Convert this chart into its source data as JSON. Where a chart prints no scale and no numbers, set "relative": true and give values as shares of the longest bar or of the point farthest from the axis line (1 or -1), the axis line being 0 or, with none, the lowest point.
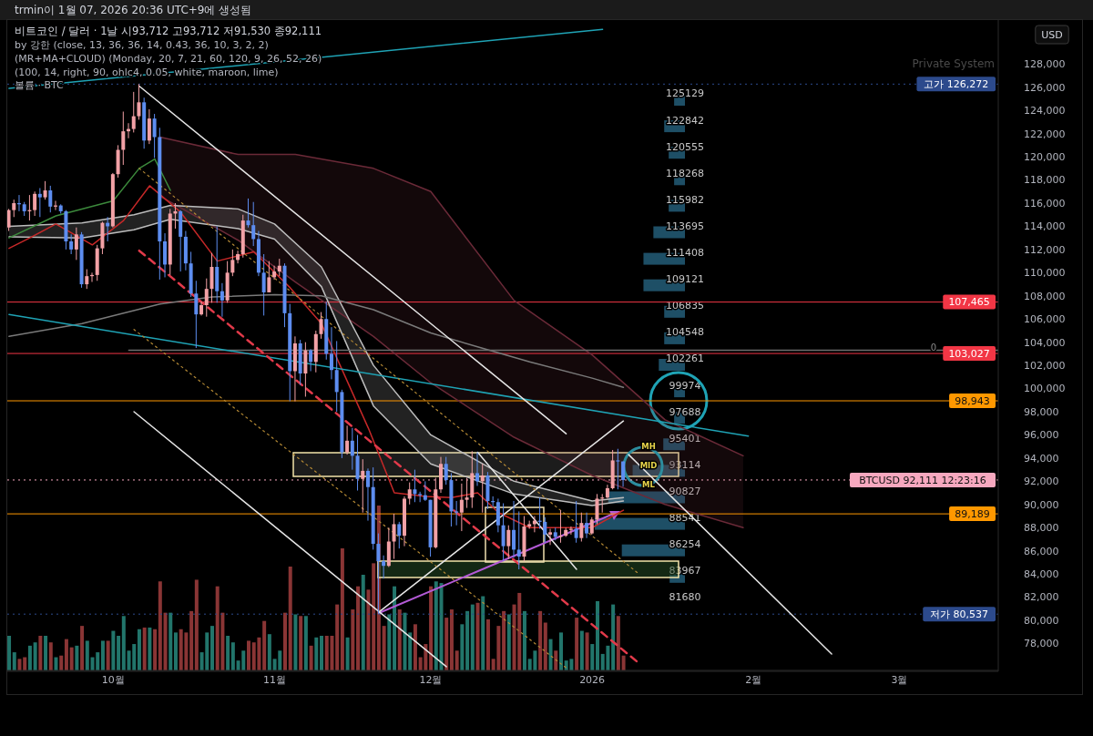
{
  "chart_data": [
    {
      "type": "candlestick",
      "title": "비트코인 / 달러 · 1날 시93,712 고93,712 저91,530 종92,111",
      "annotations": [
        "trmin이 1월 07, 2026 20:36 UTC+9에 생성됨",
        "by 강한 (close, 13, 36, 36, 14, 0.43, 36, 10, 3, 2, 2)",
        "(MR+MA+CLOUD) (Monday, 20, 7, 21, 60, 120, 9, 26, 52, 26)",
        "(100, 14, right, 90, ohlc4, 0.05, white, maroon, lime)",
        "볼륨 · BTC",
        "Private System",
        "USD",
        "0",
        "MH",
        "MID",
        "ML"
      ],
      "x": [
        "2025-09-11",
        "2025-09-12",
        "2025-09-13",
        "2025-09-14",
        "2025-09-15",
        "2025-09-16",
        "2025-09-17",
        "2025-09-18",
        "2025-09-19",
        "2025-09-20",
        "2025-09-21",
        "2025-09-22",
        "2025-09-23",
        "2025-09-24",
        "2025-09-25",
        "2025-09-26",
        "2025-09-27",
        "2025-09-28",
        "2025-09-29",
        "2025-09-30",
        "2025-10-01",
        "2025-10-02",
        "2025-10-03",
        "2025-10-04",
        "2025-10-05",
        "2025-10-06",
        "2025-10-07",
        "2025-10-08",
        "2025-10-09",
        "2025-10-10",
        "2025-10-11",
        "2025-10-12",
        "2025-10-13",
        "2025-10-14",
        "2025-10-15",
        "2025-10-16",
        "2025-10-17",
        "2025-10-18",
        "2025-10-19",
        "2025-10-20",
        "2025-10-21",
        "2025-10-22",
        "2025-10-23",
        "2025-10-24",
        "2025-10-25",
        "2025-10-26",
        "2025-10-27",
        "2025-10-28",
        "2025-10-29",
        "2025-10-30",
        "2025-10-31",
        "2025-11-01",
        "2025-11-02",
        "2025-11-03",
        "2025-11-04",
        "2025-11-05",
        "2025-11-06",
        "2025-11-07",
        "2025-11-08",
        "2025-11-09",
        "2025-11-10",
        "2025-11-11",
        "2025-11-12",
        "2025-11-13",
        "2025-11-14",
        "2025-11-15",
        "2025-11-16",
        "2025-11-17",
        "2025-11-18",
        "2025-11-19",
        "2025-11-20",
        "2025-11-21",
        "2025-11-22",
        "2025-11-23",
        "2025-11-24",
        "2025-11-25",
        "2025-11-26",
        "2025-11-27",
        "2025-11-28",
        "2025-11-29",
        "2025-11-30",
        "2025-12-01",
        "2025-12-02",
        "2025-12-03",
        "2025-12-04",
        "2025-12-05",
        "2025-12-06",
        "2025-12-07",
        "2025-12-08",
        "2025-12-09",
        "2025-12-10",
        "2025-12-11",
        "2025-12-12",
        "2025-12-13",
        "2025-12-14",
        "2025-12-15",
        "2025-12-16",
        "2025-12-17",
        "2025-12-18",
        "2025-12-19",
        "2025-12-20",
        "2025-12-21",
        "2025-12-22",
        "2025-12-23",
        "2025-12-24",
        "2025-12-25",
        "2025-12-26",
        "2025-12-27",
        "2025-12-28",
        "2025-12-29",
        "2025-12-30",
        "2025-12-31",
        "2026-01-01",
        "2026-01-02",
        "2026-01-03",
        "2026-01-04",
        "2026-01-05",
        "2026-01-06",
        "2026-01-07"
      ],
      "ohlc": [
        [
          113900,
          115500,
          113600,
          115400
        ],
        [
          115400,
          116300,
          114800,
          116000
        ],
        [
          116000,
          116700,
          115300,
          115900
        ],
        [
          115900,
          116100,
          114900,
          115300
        ],
        [
          115300,
          116700,
          114500,
          115400
        ],
        [
          115400,
          117000,
          114900,
          116800
        ],
        [
          116800,
          117300,
          114800,
          116500
        ],
        [
          116500,
          117900,
          116300,
          117100
        ],
        [
          117100,
          117500,
          115200,
          115700
        ],
        [
          115700,
          116200,
          115400,
          115800
        ],
        [
          115800,
          115900,
          115100,
          115300
        ],
        [
          115300,
          115400,
          112000,
          112700
        ],
        [
          112700,
          113300,
          111600,
          112000
        ],
        [
          112000,
          113900,
          111100,
          113300
        ],
        [
          113300,
          113500,
          108700,
          109000
        ],
        [
          109000,
          110300,
          108600,
          109700
        ],
        [
          109700,
          110000,
          109200,
          109800
        ],
        [
          109800,
          112400,
          109300,
          112100
        ],
        [
          112100,
          114400,
          111600,
          114300
        ],
        [
          114300,
          114800,
          112700,
          114000
        ],
        [
          114000,
          118600,
          113900,
          118500
        ],
        [
          118500,
          121000,
          118200,
          120600
        ],
        [
          120600,
          123900,
          119300,
          122200
        ],
        [
          122200,
          122900,
          121600,
          122400
        ],
        [
          122400,
          125600,
          122100,
          123500
        ],
        [
          123500,
          126272,
          123200,
          124700
        ],
        [
          124700,
          125100,
          120700,
          121400
        ],
        [
          121400,
          124100,
          121100,
          123300
        ],
        [
          123300,
          123700,
          119900,
          121700
        ],
        [
          121700,
          122500,
          109400,
          112700
        ],
        [
          112700,
          113400,
          109600,
          110700
        ],
        [
          110700,
          115500,
          109800,
          115100
        ],
        [
          115100,
          116000,
          113800,
          115300
        ],
        [
          115300,
          115400,
          110100,
          113100
        ],
        [
          113100,
          113600,
          110200,
          110800
        ],
        [
          110800,
          111800,
          107900,
          108200
        ],
        [
          108200,
          109300,
          103500,
          106400
        ],
        [
          106400,
          107500,
          106300,
          107200
        ],
        [
          107200,
          109500,
          106200,
          108600
        ],
        [
          108600,
          111700,
          107400,
          110500
        ],
        [
          110500,
          114000,
          107400,
          108400
        ],
        [
          108400,
          109100,
          106200,
          107600
        ],
        [
          107600,
          111000,
          107400,
          110000
        ],
        [
          110000,
          112000,
          109700,
          111100
        ],
        [
          111100,
          111900,
          110800,
          111600
        ],
        [
          111600,
          115000,
          111300,
          114500
        ],
        [
          114500,
          116400,
          113900,
          114100
        ],
        [
          114100,
          116100,
          112300,
          112900
        ],
        [
          112900,
          113600,
          109700,
          110000
        ],
        [
          110000,
          111600,
          106300,
          108300
        ],
        [
          108300,
          111000,
          108300,
          109600
        ],
        [
          109600,
          110600,
          109400,
          110100
        ],
        [
          110100,
          111200,
          109700,
          110600
        ],
        [
          110600,
          110800,
          105300,
          106500
        ],
        [
          106500,
          107300,
          98900,
          101500
        ],
        [
          101500,
          104500,
          98900,
          103900
        ],
        [
          103900,
          104200,
          100300,
          101300
        ],
        [
          101300,
          104000,
          99300,
          103300
        ],
        [
          103300,
          103400,
          101500,
          102300
        ],
        [
          102300,
          105000,
          101400,
          104700
        ],
        [
          104700,
          106600,
          104300,
          106000
        ],
        [
          106000,
          107500,
          102500,
          103000
        ],
        [
          103000,
          105300,
          100800,
          101600
        ],
        [
          101600,
          104100,
          98000,
          99700
        ],
        [
          99700,
          99900,
          94000,
          94500
        ],
        [
          94500,
          96800,
          94300,
          95500
        ],
        [
          95500,
          96600,
          93000,
          94200
        ],
        [
          94200,
          96000,
          91200,
          92200
        ],
        [
          92200,
          93900,
          89300,
          92900
        ],
        [
          92900,
          93100,
          88600,
          91500
        ],
        [
          91500,
          93200,
          86100,
          86600
        ],
        [
          86600,
          87500,
          80537,
          85100
        ],
        [
          85100,
          85600,
          83600,
          84700
        ],
        [
          84700,
          88000,
          84600,
          86800
        ],
        [
          86800,
          89200,
          85300,
          88300
        ],
        [
          88300,
          88500,
          86200,
          87300
        ],
        [
          87300,
          90700,
          86400,
          90500
        ],
        [
          90500,
          91900,
          90000,
          91300
        ],
        [
          91300,
          93000,
          90200,
          90900
        ],
        [
          90900,
          91100,
          90200,
          90800
        ],
        [
          90800,
          92000,
          90300,
          90400
        ],
        [
          90400,
          90400,
          85500,
          86300
        ],
        [
          86300,
          92300,
          86200,
          91300
        ],
        [
          91300,
          94100,
          91000,
          93500
        ],
        [
          93500,
          94100,
          91700,
          92100
        ],
        [
          92100,
          92700,
          88100,
          89400
        ],
        [
          89400,
          90300,
          88200,
          89300
        ],
        [
          89300,
          91800,
          87700,
          90400
        ],
        [
          90400,
          92300,
          89700,
          90600
        ],
        [
          90600,
          94600,
          89700,
          92700
        ],
        [
          92700,
          94500,
          91600,
          92000
        ],
        [
          92000,
          93500,
          89300,
          92500
        ],
        [
          92500,
          92800,
          89600,
          90300
        ],
        [
          90300,
          90700,
          89800,
          90200
        ],
        [
          90200,
          90500,
          87600,
          88200
        ],
        [
          88200,
          90100,
          85100,
          86400
        ],
        [
          86400,
          88200,
          85300,
          87800
        ],
        [
          87800,
          90300,
          85400,
          86100
        ],
        [
          86100,
          89400,
          84400,
          85500
        ],
        [
          85500,
          89000,
          85100,
          88100
        ],
        [
          88100,
          88600,
          87900,
          88300
        ],
        [
          88300,
          89000,
          87600,
          88600
        ],
        [
          88600,
          90600,
          87900,
          88500
        ],
        [
          88500,
          88900,
          86700,
          87400
        ],
        [
          87400,
          87900,
          86500,
          87600
        ],
        [
          87600,
          88000,
          86900,
          87200
        ],
        [
          87200,
          89500,
          86700,
          87300
        ],
        [
          87300,
          88000,
          87200,
          87800
        ],
        [
          87800,
          88100,
          87400,
          87900
        ],
        [
          87900,
          90300,
          86700,
          87100
        ],
        [
          87100,
          89300,
          86800,
          88400
        ],
        [
          88400,
          89300,
          87100,
          87500
        ],
        [
          87500,
          88900,
          87400,
          88700
        ],
        [
          88700,
          90900,
          88300,
          90500
        ],
        [
          90500,
          90900,
          89300,
          90600
        ],
        [
          90600,
          91700,
          90500,
          91400
        ],
        [
          91400,
          94700,
          91300,
          93800
        ],
        [
          93800,
          94800,
          91300,
          93712
        ],
        [
          93712,
          93712,
          91530,
          92111
        ]
      ],
      "colors": [
        "#f2a1a6",
        "#f2a1a6",
        "#5d8df0",
        "#5d8df0",
        "#f2a1a6",
        "#f2a1a6",
        "#5d8df0",
        "#f2a1a6",
        "#5d8df0",
        "#f2a1a6",
        "#5d8df0",
        "#5d8df0",
        "#5d8df0",
        "#f2a1a6",
        "#5d8df0",
        "#f2a1a6",
        "#f2a1a6",
        "#f2a1a6",
        "#f2a1a6",
        "#5d8df0",
        "#f2a1a6",
        "#f2a1a6",
        "#f2a1a6",
        "#f2a1a6",
        "#f2a1a6",
        "#f2a1a6",
        "#5d8df0",
        "#f2a1a6",
        "#5d8df0",
        "#5d8df0",
        "#5d8df0",
        "#f2a1a6",
        "#f2a1a6",
        "#5d8df0",
        "#5d8df0",
        "#5d8df0",
        "#5d8df0",
        "#f2a1a6",
        "#f2a1a6",
        "#f2a1a6",
        "#5d8df0",
        "#5d8df0",
        "#f2a1a6",
        "#f2a1a6",
        "#f2a1a6",
        "#f2a1a6",
        "#5d8df0",
        "#5d8df0",
        "#5d8df0",
        "#5d8df0",
        "#f2a1a6",
        "#f2a1a6",
        "#f2a1a6",
        "#5d8df0",
        "#5d8df0",
        "#f2a1a6",
        "#5d8df0",
        "#f2a1a6",
        "#5d8df0",
        "#f2a1a6",
        "#f2a1a6",
        "#5d8df0",
        "#5d8df0",
        "#5d8df0",
        "#5d8df0",
        "#f2a1a6",
        "#5d8df0",
        "#5d8df0",
        "#f2a1a6",
        "#5d8df0",
        "#5d8df0",
        "#5d8df0",
        "#5d8df0",
        "#f2a1a6",
        "#f2a1a6",
        "#5d8df0",
        "#f2a1a6",
        "#f2a1a6",
        "#5d8df0",
        "#5d8df0",
        "#5d8df0",
        "#5d8df0",
        "#f2a1a6",
        "#f2a1a6",
        "#5d8df0",
        "#5d8df0",
        "#5d8df0",
        "#f2a1a6",
        "#f2a1a6",
        "#f2a1a6",
        "#5d8df0",
        "#f2a1a6",
        "#5d8df0",
        "#5d8df0",
        "#5d8df0",
        "#5d8df0",
        "#f2a1a6",
        "#5d8df0",
        "#5d8df0",
        "#f2a1a6",
        "#f2a1a6",
        "#f2a1a6",
        "#5d8df0",
        "#5d8df0",
        "#f2a1a6",
        "#5d8df0",
        "#f2a1a6",
        "#f2a1a6",
        "#f2a1a6",
        "#5d8df0",
        "#f2a1a6",
        "#5d8df0",
        "#f2a1a6",
        "#f2a1a6",
        "#f2a1a6",
        "#f2a1a6",
        "#f2a1a6",
        "#5d8df0",
        "#5d8df0"
      ],
      "series": [
        {
          "type": "line",
          "color": "#6b2a38",
          "x": [
            "2025-10-10",
            "2025-10-25",
            "2025-11-05",
            "2025-11-20",
            "2025-12-01",
            "2025-12-17",
            "2026-01-01",
            "2026-01-15",
            "2026-01-30"
          ],
          "values": [
            121700,
            120200,
            120200,
            119000,
            117000,
            107600,
            102900,
            97300,
            94200
          ],
          "lower": [
            116600,
            112800,
            109200,
            104500,
            100500,
            95800,
            92500,
            90000,
            88000
          ],
          "upper": [
            121700,
            120200,
            120200,
            119000,
            117000,
            107600,
            102900,
            97300,
            94200
          ]
        },
        {
          "type": "line",
          "color": "#6b2a38",
          "x": [
            "2025-10-10",
            "2025-10-25",
            "2025-11-05",
            "2025-11-20",
            "2025-12-01",
            "2025-12-17",
            "2026-01-01",
            "2026-01-15",
            "2026-01-30"
          ],
          "values": [
            116600,
            112800,
            109200,
            104500,
            100500,
            95800,
            92500,
            90000,
            88000
          ]
        },
        {
          "type": "line",
          "color": "#bdbdbd",
          "x": [
            "2025-09-11",
            "2025-09-25",
            "2025-10-05",
            "2025-10-12",
            "2025-10-25",
            "2025-11-01",
            "2025-11-10",
            "2025-11-20",
            "2025-12-01",
            "2025-12-17",
            "2026-01-01",
            "2026-01-07"
          ],
          "values": [
            114000,
            114300,
            115000,
            115800,
            115500,
            114200,
            110500,
            102000,
            96000,
            92000,
            90300,
            90600
          ],
          "lower": [
            113100,
            113000,
            113700,
            114600,
            113800,
            112900,
            108800,
            98500,
            93500,
            90900,
            89900,
            90300
          ],
          "upper": [
            114000,
            114300,
            115000,
            115800,
            115500,
            114200,
            110500,
            102000,
            96000,
            92000,
            90300,
            90600
          ]
        },
        {
          "type": "line",
          "color": "#bdbdbd",
          "x": [
            "2025-09-11",
            "2025-09-25",
            "2025-10-05",
            "2025-10-12",
            "2025-10-25",
            "2025-11-01",
            "2025-11-10",
            "2025-11-20",
            "2025-12-01",
            "2025-12-17",
            "2026-01-01",
            "2026-01-07"
          ],
          "values": [
            113100,
            113000,
            113700,
            114600,
            113800,
            112900,
            108800,
            98500,
            93500,
            90900,
            89900,
            90300
          ]
        },
        {
          "type": "line",
          "color": "#7a7a7a",
          "x": [
            "2025-09-11",
            "2025-09-25",
            "2025-10-10",
            "2025-10-20",
            "2025-11-01",
            "2025-11-10",
            "2025-11-20",
            "2025-12-01",
            "2025-12-10",
            "2025-12-20",
            "2026-01-01",
            "2026-01-07"
          ],
          "values": [
            104500,
            105600,
            107300,
            107900,
            108100,
            108000,
            106800,
            104800,
            103600,
            102300,
            100900,
            100100
          ]
        },
        {
          "type": "line",
          "color": "#c62828",
          "x": [
            "2025-09-11",
            "2025-09-15",
            "2025-09-20",
            "2025-09-27",
            "2025-10-03",
            "2025-10-08",
            "2025-10-14",
            "2025-10-21",
            "2025-10-28",
            "2025-11-04",
            "2025-11-10",
            "2025-11-19",
            "2025-11-24",
            "2025-11-30",
            "2025-12-05",
            "2025-12-10",
            "2025-12-14",
            "2025-12-20",
            "2026-01-01",
            "2026-01-07"
          ],
          "values": [
            112100,
            113000,
            114200,
            112400,
            114500,
            117500,
            115200,
            111000,
            111800,
            108700,
            105600,
            96600,
            91000,
            90700,
            90600,
            91000,
            89300,
            88000,
            88000,
            89500
          ]
        },
        {
          "type": "line",
          "color": "#3c8a3c",
          "x": [
            "2025-09-11",
            "2025-09-20",
            "2025-10-01",
            "2025-10-06",
            "2025-10-09",
            "2025-10-12"
          ],
          "values": [
            113000,
            114900,
            116200,
            119000,
            119800,
            117100
          ]
        },
        {
          "type": "line",
          "color": "#6e6e6e",
          "x": [
            "2025-10-04",
            "2026-03-20"
          ],
          "values": [
            103300,
            103300
          ]
        },
        {
          "type": "line",
          "color": "#1fa3b5",
          "x": [
            "2025-09-11",
            "2026-01-03"
          ],
          "values": [
            125900,
            131000
          ]
        },
        {
          "type": "line",
          "color": "#1fa3b5",
          "x": [
            "2025-09-11",
            "2026-01-31"
          ],
          "values": [
            106400,
            95900
          ]
        },
        {
          "type": "line",
          "color": "#e6e6e6",
          "x": [
            "2025-10-06",
            "2025-12-27"
          ],
          "values": [
            126100,
            96100
          ]
        },
        {
          "type": "line",
          "color": "#e6e6e6",
          "x": [
            "2025-10-05",
            "2025-12-04"
          ],
          "values": [
            98000,
            76000
          ]
        },
        {
          "type": "line",
          "color": "#e6e6e6",
          "x": [
            "2025-11-21",
            "2026-01-07"
          ],
          "values": [
            80700,
            97200
          ]
        },
        {
          "type": "line",
          "color": "#e6e6e6",
          "x": [
            "2026-01-08",
            "2026-02-16"
          ],
          "values": [
            94300,
            77100
          ]
        },
        {
          "type": "line",
          "color": "#e6e6e6",
          "x": [
            "2025-12-10",
            "2025-12-29"
          ],
          "values": [
            94500,
            84400
          ]
        },
        {
          "type": "line",
          "color": "#e23a4a",
          "line_style": "dashed",
          "x": [
            "2025-10-06",
            "2026-01-10"
          ],
          "values": [
            111900,
            76300
          ]
        },
        {
          "type": "line",
          "color": "#b58a35",
          "line_style": "dotted",
          "x": [
            "2025-10-06",
            "2026-01-10"
          ],
          "values": [
            119000,
            84000
          ]
        },
        {
          "type": "line",
          "color": "#b58a35",
          "line_style": "dotted",
          "x": [
            "2025-10-05",
            "2025-12-27"
          ],
          "values": [
            105100,
            75900
          ]
        }
      ],
      "ref_lines": [
        {
          "axis": "y",
          "value": 126272,
          "label": "고가 126,272",
          "color": "#2c4a8c",
          "line_style": "dotted"
        },
        {
          "axis": "y",
          "value": 107465,
          "label": "107,465",
          "color": "#f23645"
        },
        {
          "axis": "y",
          "value": 103027,
          "label": "103,027",
          "color": "#f23645"
        },
        {
          "axis": "y",
          "value": 98943,
          "label": "98,943",
          "color": "#ff9800"
        },
        {
          "axis": "y",
          "value": 92111,
          "label": "BTCUSD 92,111 12:23:16",
          "color": "#f7a8bf",
          "line_style": "dotted"
        },
        {
          "axis": "y",
          "value": 89189,
          "label": "89,189",
          "color": "#ff9800"
        },
        {
          "axis": "y",
          "value": 80537,
          "label": "저가 80,537",
          "color": "#2c4a8c",
          "line_style": "dotted"
        }
      ],
      "xlim": [
        "2025-09-10T16:00",
        "2026-03-20"
      ],
      "xticks": [
        {
          "value": "2025-10-01",
          "label": "10월"
        },
        {
          "value": "2025-11-01",
          "label": "11월"
        },
        {
          "value": "2025-12-01",
          "label": "12월"
        },
        {
          "value": "2026-01-01",
          "label": "2026"
        },
        {
          "value": "2026-02-01",
          "label": "2월"
        },
        {
          "value": "2026-03-01",
          "label": "3월"
        }
      ],
      "ylim": [
        75600,
        131800
      ],
      "yticks": [
        {
          "value": 78000,
          "label": "78,000"
        },
        {
          "value": 80000,
          "label": "80,000"
        },
        {
          "value": 82000,
          "label": "82,000"
        },
        {
          "value": 84000,
          "label": "84,000"
        },
        {
          "value": 86000,
          "label": "86,000"
        },
        {
          "value": 88000,
          "label": "88,000"
        },
        {
          "value": 90000,
          "label": "90,000"
        },
        {
          "value": 92000,
          "label": "92,000"
        },
        {
          "value": 94000,
          "label": "94,000"
        },
        {
          "value": 96000,
          "label": "96,000"
        },
        {
          "value": 98000,
          "label": "98,000"
        },
        {
          "value": 100000,
          "label": "100,000"
        },
        {
          "value": 102000,
          "label": "102,000"
        },
        {
          "value": 104000,
          "label": "104,000"
        },
        {
          "value": 106000,
          "label": "106,000"
        },
        {
          "value": 108000,
          "label": "108,000"
        },
        {
          "value": 110000,
          "label": "110,000"
        },
        {
          "value": 112000,
          "label": "112,000"
        },
        {
          "value": 114000,
          "label": "114,000"
        },
        {
          "value": 116000,
          "label": "116,000"
        },
        {
          "value": 118000,
          "label": "118,000"
        },
        {
          "value": 120000,
          "label": "120,000"
        },
        {
          "value": 122000,
          "label": "122,000"
        },
        {
          "value": 124000,
          "label": "124,000"
        },
        {
          "value": 126000,
          "label": "126,000"
        },
        {
          "value": 128000,
          "label": "128,000"
        }
      ]
    },
    {
      "type": "bar",
      "relative": true,
      "tick_labels": false,
      "xlim": [
        "2025-09-10T16:00",
        "2026-03-20"
      ],
      "x": [
        "2025-09-11",
        "2025-09-12",
        "2025-09-13",
        "2025-09-14",
        "2025-09-15",
        "2025-09-16",
        "2025-09-17",
        "2025-09-18",
        "2025-09-19",
        "2025-09-20",
        "2025-09-21",
        "2025-09-22",
        "2025-09-23",
        "2025-09-24",
        "2025-09-25",
        "2025-09-26",
        "2025-09-27",
        "2025-09-28",
        "2025-09-29",
        "2025-09-30",
        "2025-10-01",
        "2025-10-02",
        "2025-10-03",
        "2025-10-04",
        "2025-10-05",
        "2025-10-06",
        "2025-10-07",
        "2025-10-08",
        "2025-10-09",
        "2025-10-10",
        "2025-10-11",
        "2025-10-12",
        "2025-10-13",
        "2025-10-14",
        "2025-10-15",
        "2025-10-16",
        "2025-10-17",
        "2025-10-18",
        "2025-10-19",
        "2025-10-20",
        "2025-10-21",
        "2025-10-22",
        "2025-10-23",
        "2025-10-24",
        "2025-10-25",
        "2025-10-26",
        "2025-10-27",
        "2025-10-28",
        "2025-10-29",
        "2025-10-30",
        "2025-10-31",
        "2025-11-01",
        "2025-11-02",
        "2025-11-03",
        "2025-11-04",
        "2025-11-05",
        "2025-11-06",
        "2025-11-07",
        "2025-11-08",
        "2025-11-09",
        "2025-11-10",
        "2025-11-11",
        "2025-11-12",
        "2025-11-13",
        "2025-11-14",
        "2025-11-15",
        "2025-11-16",
        "2025-11-17",
        "2025-11-18",
        "2025-11-19",
        "2025-11-20",
        "2025-11-21",
        "2025-11-22",
        "2025-11-23",
        "2025-11-24",
        "2025-11-25",
        "2025-11-26",
        "2025-11-27",
        "2025-11-28",
        "2025-11-29",
        "2025-11-30",
        "2025-12-01",
        "2025-12-02",
        "2025-12-03",
        "2025-12-04",
        "2025-12-05",
        "2025-12-06",
        "2025-12-07",
        "2025-12-08",
        "2025-12-09",
        "2025-12-10",
        "2025-12-11",
        "2025-12-12",
        "2025-12-13",
        "2025-12-14",
        "2025-12-15",
        "2025-12-16",
        "2025-12-17",
        "2025-12-18",
        "2025-12-19",
        "2025-12-20",
        "2025-12-21",
        "2025-12-22",
        "2025-12-23",
        "2025-12-24",
        "2025-12-25",
        "2025-12-26",
        "2025-12-27",
        "2025-12-28",
        "2025-12-29",
        "2025-12-30",
        "2025-12-31",
        "2026-01-01",
        "2026-01-02",
        "2026-01-03",
        "2026-01-04",
        "2026-01-05",
        "2026-01-06",
        "2026-01-07"
      ],
      "values": [
        0.21,
        0.11,
        0.07,
        0.08,
        0.15,
        0.17,
        0.21,
        0.21,
        0.17,
        0.08,
        0.09,
        0.19,
        0.14,
        0.15,
        0.27,
        0.18,
        0.08,
        0.11,
        0.18,
        0.18,
        0.24,
        0.21,
        0.33,
        0.12,
        0.16,
        0.25,
        0.26,
        0.26,
        0.25,
        0.54,
        0.35,
        0.35,
        0.23,
        0.25,
        0.23,
        0.36,
        0.55,
        0.11,
        0.23,
        0.27,
        0.51,
        0.35,
        0.21,
        0.17,
        0.06,
        0.12,
        0.18,
        0.17,
        0.2,
        0.3,
        0.22,
        0.07,
        0.12,
        0.35,
        0.63,
        0.34,
        0.33,
        0.33,
        0.15,
        0.2,
        0.21,
        0.21,
        0.21,
        0.4,
        0.74,
        0.2,
        0.37,
        0.51,
        0.58,
        0.49,
        0.65,
        1,
        0.27,
        0.34,
        0.51,
        0.37,
        0.35,
        0.23,
        0.28,
        0.08,
        0.16,
        0.51,
        0.54,
        0.53,
        0.32,
        0.37,
        0.12,
        0.28,
        0.36,
        0.4,
        0.41,
        0.45,
        0.31,
        0.07,
        0.27,
        0.36,
        0.34,
        0.4,
        0.47,
        0.36,
        0.07,
        0.12,
        0.36,
        0.29,
        0.19,
        0.12,
        0.23,
        0.06,
        0.07,
        0.32,
        0.24,
        0.23,
        0.16,
        0.42,
        0.1,
        0.15,
        0.4,
        0.33,
        0.09
      ],
      "colors": [
        "#22756b",
        "#22756b",
        "#8a3535",
        "#8a3535",
        "#22756b",
        "#22756b",
        "#8a3535",
        "#22756b",
        "#8a3535",
        "#22756b",
        "#8a3535",
        "#8a3535",
        "#8a3535",
        "#22756b",
        "#8a3535",
        "#22756b",
        "#22756b",
        "#22756b",
        "#22756b",
        "#8a3535",
        "#22756b",
        "#22756b",
        "#22756b",
        "#22756b",
        "#22756b",
        "#22756b",
        "#8a3535",
        "#22756b",
        "#8a3535",
        "#8a3535",
        "#8a3535",
        "#22756b",
        "#22756b",
        "#8a3535",
        "#8a3535",
        "#8a3535",
        "#8a3535",
        "#22756b",
        "#22756b",
        "#22756b",
        "#8a3535",
        "#8a3535",
        "#22756b",
        "#22756b",
        "#22756b",
        "#22756b",
        "#8a3535",
        "#8a3535",
        "#8a3535",
        "#8a3535",
        "#22756b",
        "#22756b",
        "#22756b",
        "#8a3535",
        "#8a3535",
        "#22756b",
        "#8a3535",
        "#22756b",
        "#8a3535",
        "#22756b",
        "#22756b",
        "#8a3535",
        "#8a3535",
        "#8a3535",
        "#8a3535",
        "#22756b",
        "#8a3535",
        "#8a3535",
        "#22756b",
        "#8a3535",
        "#8a3535",
        "#8a3535",
        "#8a3535",
        "#22756b",
        "#22756b",
        "#8a3535",
        "#22756b",
        "#22756b",
        "#8a3535",
        "#8a3535",
        "#8a3535",
        "#8a3535",
        "#22756b",
        "#22756b",
        "#8a3535",
        "#8a3535",
        "#8a3535",
        "#22756b",
        "#22756b",
        "#22756b",
        "#8a3535",
        "#22756b",
        "#8a3535",
        "#8a3535",
        "#8a3535",
        "#8a3535",
        "#22756b",
        "#8a3535",
        "#8a3535",
        "#22756b",
        "#22756b",
        "#22756b",
        "#8a3535",
        "#8a3535",
        "#22756b",
        "#8a3535",
        "#22756b",
        "#22756b",
        "#22756b",
        "#8a3535",
        "#22756b",
        "#8a3535",
        "#22756b",
        "#22756b",
        "#22756b",
        "#22756b",
        "#22756b",
        "#8a3535",
        "#8a3535"
      ]
    },
    {
      "type": "bar",
      "orientation": "horizontal",
      "relative": true,
      "tick_labels": "y",
      "color": "#1e4f66",
      "categories": [
        "125129",
        "122842",
        "120555",
        "118268",
        "115982",
        "113695",
        "111408",
        "109121",
        "106835",
        "104548",
        "102261",
        "99974",
        "97688",
        "95401",
        "93114",
        "90827",
        "88541",
        "86254",
        "83967",
        "81680"
      ],
      "values": [
        0.12,
        0.23,
        0.18,
        0.12,
        0.18,
        0.35,
        0.46,
        0.46,
        0.23,
        0.23,
        0.29,
        0.12,
        0.12,
        0.24,
        0.58,
        0.85,
        1,
        0.7,
        0.17,
        null
      ]
    }
  ]
}
